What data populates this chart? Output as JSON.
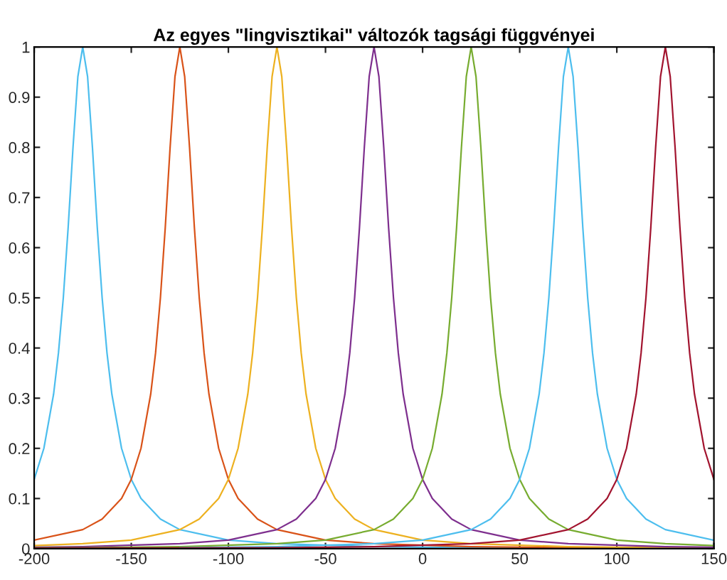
{
  "chart_data": {
    "type": "line",
    "title": "Az egyes \"lingvisztikai\" változók tagsági függvényei",
    "series": [
      {
        "color": "#4dbeee",
        "x": [
          -200,
          -195,
          -190,
          -187.5,
          -185,
          -182.5,
          -180,
          -177.5,
          -175,
          -172.5,
          -170,
          -167.5,
          -165,
          -162.5,
          -160,
          -155,
          -150,
          -145,
          -135,
          -125,
          -100,
          -75,
          -25,
          25,
          75
        ],
        "values": [
          0.138,
          0.2,
          0.308,
          0.39,
          0.5,
          0.64,
          0.8,
          0.941,
          1,
          0.941,
          0.8,
          0.64,
          0.5,
          0.39,
          0.308,
          0.2,
          0.138,
          0.1,
          0.059,
          0.038,
          0.017,
          0.01,
          0.004,
          0.002,
          0.002
        ]
      },
      {
        "color": "#d95319",
        "x": [
          -200,
          -175,
          -165,
          -155,
          -150,
          -145,
          -140,
          -137.5,
          -135,
          -132.5,
          -130,
          -127.5,
          -125,
          -122.5,
          -120,
          -117.5,
          -115,
          -112.5,
          -110,
          -105,
          -100,
          -95,
          -85,
          -75,
          -50,
          -25,
          25,
          75,
          125,
          150
        ],
        "values": [
          0.017,
          0.038,
          0.059,
          0.1,
          0.138,
          0.2,
          0.308,
          0.39,
          0.5,
          0.64,
          0.8,
          0.941,
          1,
          0.941,
          0.8,
          0.64,
          0.5,
          0.39,
          0.308,
          0.2,
          0.138,
          0.1,
          0.059,
          0.038,
          0.017,
          0.01,
          0.004,
          0.002,
          0.002,
          0.001
        ]
      },
      {
        "color": "#edb120",
        "x": [
          -200,
          -175,
          -150,
          -125,
          -115,
          -105,
          -100,
          -95,
          -90,
          -87.5,
          -85,
          -82.5,
          -80,
          -77.5,
          -75,
          -72.5,
          -70,
          -67.5,
          -65,
          -62.5,
          -60,
          -55,
          -50,
          -45,
          -35,
          -25,
          0,
          25,
          75,
          125,
          150
        ],
        "values": [
          0.006,
          0.01,
          0.017,
          0.038,
          0.059,
          0.1,
          0.138,
          0.2,
          0.308,
          0.39,
          0.5,
          0.64,
          0.8,
          0.941,
          1,
          0.941,
          0.8,
          0.64,
          0.5,
          0.39,
          0.308,
          0.2,
          0.138,
          0.1,
          0.059,
          0.038,
          0.017,
          0.01,
          0.004,
          0.002,
          0.002
        ]
      },
      {
        "color": "#7e2f8e",
        "x": [
          -200,
          -175,
          -125,
          -100,
          -75,
          -65,
          -55,
          -50,
          -45,
          -40,
          -37.5,
          -35,
          -32.5,
          -30,
          -27.5,
          -25,
          -22.5,
          -20,
          -17.5,
          -15,
          -12.5,
          -10,
          -5,
          0,
          5,
          15,
          25,
          50,
          75,
          125,
          150
        ],
        "values": [
          0.003,
          0.004,
          0.01,
          0.017,
          0.038,
          0.059,
          0.1,
          0.138,
          0.2,
          0.308,
          0.39,
          0.5,
          0.64,
          0.8,
          0.941,
          1,
          0.941,
          0.8,
          0.64,
          0.5,
          0.39,
          0.308,
          0.2,
          0.138,
          0.1,
          0.059,
          0.038,
          0.017,
          0.01,
          0.004,
          0.003
        ]
      },
      {
        "color": "#77ac30",
        "x": [
          -200,
          -175,
          -125,
          -75,
          -50,
          -25,
          -15,
          -5,
          0,
          5,
          10,
          12.5,
          15,
          17.5,
          20,
          22.5,
          25,
          27.5,
          30,
          32.5,
          35,
          37.5,
          40,
          45,
          50,
          55,
          65,
          75,
          100,
          125,
          150
        ],
        "values": [
          0.002,
          0.002,
          0.004,
          0.01,
          0.017,
          0.038,
          0.059,
          0.1,
          0.138,
          0.2,
          0.308,
          0.39,
          0.5,
          0.64,
          0.8,
          0.941,
          1,
          0.941,
          0.8,
          0.64,
          0.5,
          0.39,
          0.308,
          0.2,
          0.138,
          0.1,
          0.059,
          0.038,
          0.017,
          0.01,
          0.006
        ]
      },
      {
        "color": "#4dbeee",
        "x": [
          -125,
          -75,
          -25,
          0,
          25,
          35,
          45,
          50,
          55,
          60,
          62.5,
          65,
          67.5,
          70,
          72.5,
          75,
          77.5,
          80,
          82.5,
          85,
          87.5,
          90,
          95,
          100,
          105,
          115,
          125,
          150
        ],
        "values": [
          0.002,
          0.004,
          0.01,
          0.017,
          0.038,
          0.059,
          0.1,
          0.138,
          0.2,
          0.308,
          0.39,
          0.5,
          0.64,
          0.8,
          0.941,
          1,
          0.941,
          0.8,
          0.64,
          0.5,
          0.39,
          0.308,
          0.2,
          0.138,
          0.1,
          0.059,
          0.038,
          0.017
        ]
      },
      {
        "color": "#a2142f",
        "x": [
          -200,
          -75,
          -25,
          25,
          50,
          75,
          85,
          95,
          100,
          105,
          110,
          112.5,
          115,
          117.5,
          120,
          122.5,
          125,
          127.5,
          130,
          132.5,
          135,
          137.5,
          140,
          145,
          150
        ],
        "values": [
          0.001,
          0.002,
          0.004,
          0.01,
          0.017,
          0.038,
          0.059,
          0.1,
          0.138,
          0.2,
          0.308,
          0.39,
          0.5,
          0.64,
          0.8,
          0.941,
          1,
          0.941,
          0.8,
          0.64,
          0.5,
          0.39,
          0.308,
          0.2,
          0.138
        ]
      }
    ],
    "xlim": [
      -200,
      150
    ],
    "xticks": [
      -200,
      -150,
      -100,
      -50,
      0,
      50,
      100,
      150
    ],
    "ylim": [
      0,
      1
    ],
    "yticks": [
      0,
      0.1,
      0.2,
      0.3,
      0.4,
      0.5,
      0.6,
      0.7,
      0.8,
      0.9,
      1
    ],
    "grid": false,
    "marker": "none",
    "line_style": "solid"
  }
}
